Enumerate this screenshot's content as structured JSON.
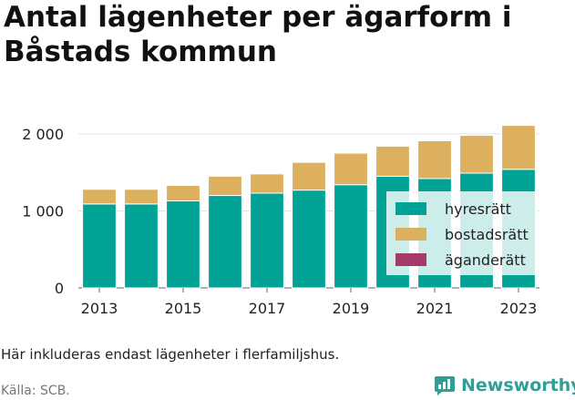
{
  "title": "Antal lägenheter per ägarform i Båstads kommun",
  "note": "Här inkluderas endast lägenheter i flerfamiljshus.",
  "source": "Källa: SCB.",
  "brand": {
    "name": "Newsworthy",
    "icon": "newsworthy-logo-icon",
    "color": "#2f9e94"
  },
  "chart_data": {
    "type": "bar",
    "stacked": true,
    "categories": [
      "2013",
      "2014",
      "2015",
      "2016",
      "2017",
      "2018",
      "2019",
      "2020",
      "2021",
      "2022",
      "2023"
    ],
    "tick_labels": [
      "2013",
      "2015",
      "2017",
      "2019",
      "2021",
      "2023"
    ],
    "ylim": [
      0,
      2200
    ],
    "yticks": [
      0,
      1000,
      2000
    ],
    "ytick_labels": [
      "0",
      "1 000",
      "2 000"
    ],
    "grid": true,
    "legend_position": "lower-right",
    "series": [
      {
        "name": "hyresrätt",
        "color": "#00a396",
        "values": [
          1090,
          1090,
          1130,
          1200,
          1230,
          1270,
          1340,
          1450,
          1420,
          1490,
          1540
        ]
      },
      {
        "name": "bostadsrätt",
        "color": "#dcb05e",
        "values": [
          190,
          190,
          200,
          250,
          250,
          360,
          410,
          390,
          490,
          490,
          570
        ]
      },
      {
        "name": "äganderätt",
        "color": "#a63a6a",
        "values": [
          0,
          0,
          0,
          0,
          0,
          0,
          0,
          0,
          0,
          0,
          0
        ]
      }
    ]
  }
}
